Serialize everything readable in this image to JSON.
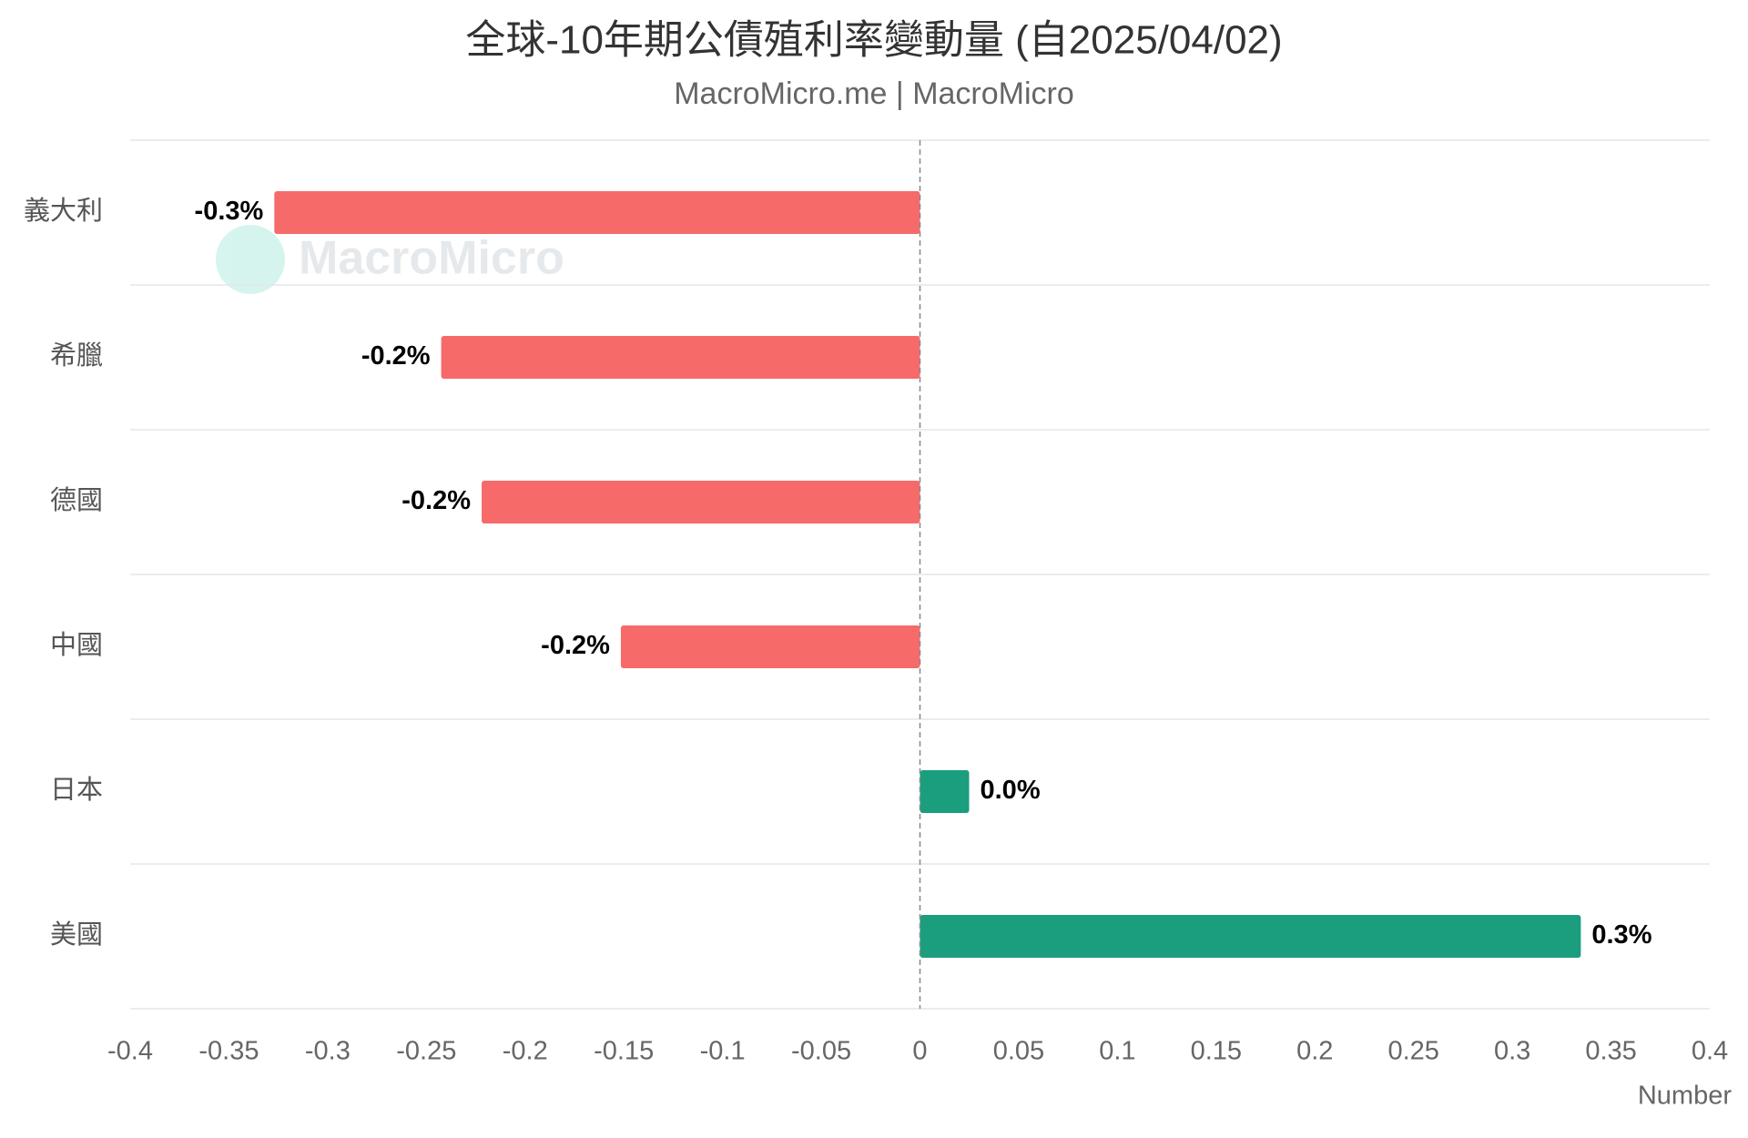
{
  "chart_data": {
    "type": "hbar",
    "title": "全球-10年期公債殖利率變動量 (自2025/04/02)",
    "subtitle": "MacroMicro.me | MacroMicro",
    "watermark": "MacroMicro",
    "x_label": "Number",
    "categories": [
      "義大利",
      "希臘",
      "德國",
      "中國",
      "日本",
      "美國"
    ],
    "values": [
      -0.327,
      -0.2425,
      -0.222,
      -0.1515,
      0.0249,
      0.3347
    ],
    "value_labels": [
      "-0.3%",
      "-0.2%",
      "-0.2%",
      "-0.2%",
      "0.0%",
      "0.3%"
    ],
    "negative_color": "#f66a6a",
    "positive_color": "#1a9e7e",
    "xlim": [
      -0.4,
      0.4
    ],
    "xticks": [
      -0.4,
      -0.35,
      -0.3,
      -0.25,
      -0.2,
      -0.15,
      -0.1,
      -0.05,
      0,
      0.05,
      0.1,
      0.15,
      0.2,
      0.25,
      0.3,
      0.35,
      0.4
    ]
  }
}
